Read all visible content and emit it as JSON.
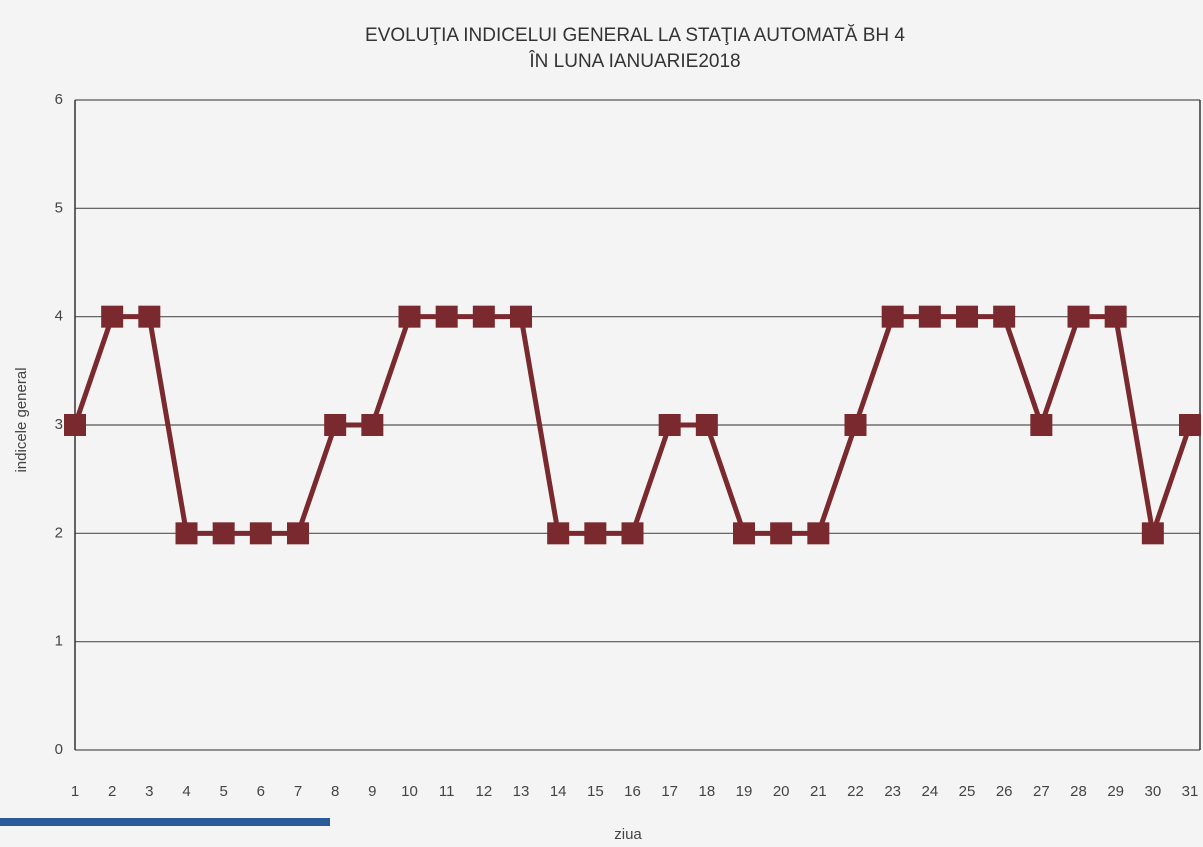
{
  "chart_data": {
    "type": "line",
    "title": [
      "EVOLUŢIA INDICELUI GENERAL LA STAŢIA AUTOMATĂ BH 4",
      "ÎN LUNA IANUARIE2018"
    ],
    "x_label": "ziua",
    "y_label": "indicele general",
    "categories": [
      "1",
      "2",
      "3",
      "4",
      "5",
      "6",
      "7",
      "8",
      "9",
      "10",
      "11",
      "12",
      "13",
      "14",
      "15",
      "16",
      "17",
      "18",
      "19",
      "20",
      "21",
      "22",
      "23",
      "24",
      "25",
      "26",
      "27",
      "28",
      "29",
      "30",
      "31"
    ],
    "series": [
      {
        "name": "indicele general",
        "color": "#7a2a2e",
        "values": [
          3,
          4,
          4,
          2,
          2,
          2,
          2,
          3,
          3,
          4,
          4,
          4,
          4,
          2,
          2,
          2,
          3,
          3,
          2,
          2,
          2,
          3,
          4,
          4,
          4,
          4,
          3,
          4,
          4,
          2,
          3
        ]
      }
    ],
    "ylim": [
      0,
      6
    ],
    "yticks": [
      0,
      1,
      2,
      3,
      4,
      5,
      6
    ],
    "grid": true
  }
}
